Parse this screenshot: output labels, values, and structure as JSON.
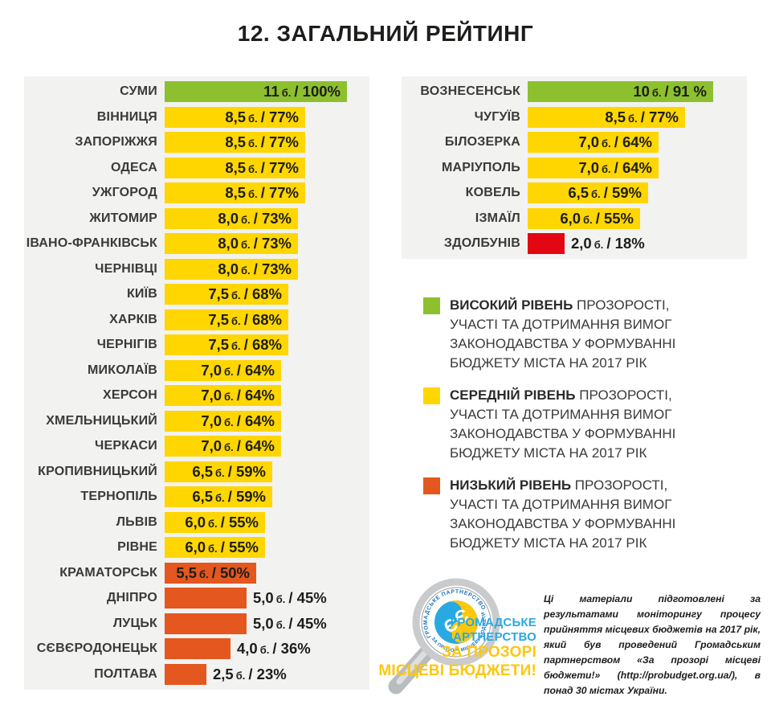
{
  "page": {
    "title": "12. ЗАГАЛЬНИЙ РЕЙТИНГ"
  },
  "colors": {
    "high": "#8dc02f",
    "medium": "#ffd600",
    "low": "#e4571e",
    "critical": "#e30613",
    "panel_bg": "#f2f2f1",
    "ink": "#1d1d1b",
    "brand_blue": "#29a9e1",
    "brand_gold": "#fdc70c",
    "badge_text_blue": "#1b75bc"
  },
  "chart_data": {
    "type": "bar",
    "orientation": "horizontal",
    "title": "12. ЗАГАЛЬНИЙ РЕЙТИНГ",
    "unit": "б.",
    "max_points": 11,
    "value_format": "{points} б. / {percent}%",
    "series": [
      {
        "name": "left-ranking",
        "rows": [
          {
            "city": "СУМИ",
            "points": 11,
            "percent": 100,
            "level": "high",
            "value_parts": [
              "11",
              "б.",
              "/ 100%"
            ]
          },
          {
            "city": "ВІННИЦЯ",
            "points": 8.5,
            "percent": 77,
            "level": "medium",
            "value_parts": [
              "8,5",
              "б.",
              "/ 77%"
            ]
          },
          {
            "city": "ЗАПОРІЖЖЯ",
            "points": 8.5,
            "percent": 77,
            "level": "medium",
            "value_parts": [
              "8,5",
              "б.",
              "/ 77%"
            ]
          },
          {
            "city": "ОДЕСА",
            "points": 8.5,
            "percent": 77,
            "level": "medium",
            "value_parts": [
              "8,5",
              "б.",
              "/ 77%"
            ]
          },
          {
            "city": "УЖГОРОД",
            "points": 8.5,
            "percent": 77,
            "level": "medium",
            "value_parts": [
              "8,5",
              "б.",
              "/ 77%"
            ]
          },
          {
            "city": "ЖИТОМИР",
            "points": 8.0,
            "percent": 73,
            "level": "medium",
            "value_parts": [
              "8,0",
              "б.",
              "/ 73%"
            ]
          },
          {
            "city": "ІВАНО-ФРАНКІВСЬК",
            "points": 8.0,
            "percent": 73,
            "level": "medium",
            "value_parts": [
              "8,0",
              "б.",
              "/ 73%"
            ]
          },
          {
            "city": "ЧЕРНІВЦІ",
            "points": 8.0,
            "percent": 73,
            "level": "medium",
            "value_parts": [
              "8,0",
              "б.",
              "/ 73%"
            ]
          },
          {
            "city": "КИЇВ",
            "points": 7.5,
            "percent": 68,
            "level": "medium",
            "value_parts": [
              "7,5",
              "б.",
              "/ 68%"
            ]
          },
          {
            "city": "ХАРКІВ",
            "points": 7.5,
            "percent": 68,
            "level": "medium",
            "value_parts": [
              "7,5",
              "б.",
              "/ 68%"
            ]
          },
          {
            "city": "ЧЕРНІГІВ",
            "points": 7.5,
            "percent": 68,
            "level": "medium",
            "value_parts": [
              "7,5",
              "б.",
              "/ 68%"
            ]
          },
          {
            "city": "МИКОЛАЇВ",
            "points": 7.0,
            "percent": 64,
            "level": "medium",
            "value_parts": [
              "7,0",
              "б.",
              "/ 64%"
            ]
          },
          {
            "city": "ХЕРСОН",
            "points": 7.0,
            "percent": 64,
            "level": "medium",
            "value_parts": [
              "7,0",
              "б.",
              "/ 64%"
            ]
          },
          {
            "city": "ХМЕЛЬНИЦЬКИЙ",
            "points": 7.0,
            "percent": 64,
            "level": "medium",
            "value_parts": [
              "7,0",
              "б.",
              "/ 64%"
            ]
          },
          {
            "city": "ЧЕРКАСИ",
            "points": 7.0,
            "percent": 64,
            "level": "medium",
            "value_parts": [
              "7,0",
              "б.",
              "/ 64%"
            ]
          },
          {
            "city": "КРОПИВНИЦЬКИЙ",
            "points": 6.5,
            "percent": 59,
            "level": "medium",
            "value_parts": [
              "6,5",
              "б.",
              "/ 59%"
            ]
          },
          {
            "city": "ТЕРНОПІЛЬ",
            "points": 6.5,
            "percent": 59,
            "level": "medium",
            "value_parts": [
              "6,5",
              "б.",
              "/ 59%"
            ]
          },
          {
            "city": "ЛЬВІВ",
            "points": 6.0,
            "percent": 55,
            "level": "medium",
            "value_parts": [
              "6,0",
              "б.",
              "/ 55%"
            ]
          },
          {
            "city": "РІВНЕ",
            "points": 6.0,
            "percent": 55,
            "level": "medium",
            "value_parts": [
              "6,0",
              "б.",
              "/ 55%"
            ]
          },
          {
            "city": "КРАМАТОРСЬК",
            "points": 5.5,
            "percent": 50,
            "level": "low",
            "value_parts": [
              "5,5",
              "б.",
              "/ 50%"
            ]
          },
          {
            "city": "ДНІПРО",
            "points": 5.0,
            "percent": 45,
            "level": "low",
            "value_parts": [
              "5,0",
              "б.",
              "/ 45%"
            ]
          },
          {
            "city": "ЛУЦЬК",
            "points": 5.0,
            "percent": 45,
            "level": "low",
            "value_parts": [
              "5,0",
              "б.",
              "/ 45%"
            ]
          },
          {
            "city": "СЄВЄРОДОНЕЦЬК",
            "points": 4.0,
            "percent": 36,
            "level": "low",
            "value_parts": [
              "4,0",
              "б.",
              "/ 36%"
            ]
          },
          {
            "city": "ПОЛТАВА",
            "points": 2.5,
            "percent": 23,
            "level": "low",
            "value_parts": [
              "2,5",
              "б.",
              "/ 23%"
            ]
          }
        ]
      },
      {
        "name": "right-ranking",
        "rows": [
          {
            "city": "ВОЗНЕСЕНСЬК",
            "points": 10,
            "percent": 91,
            "level": "high",
            "value_parts": [
              "10",
              "б.",
              "/ 91 %"
            ]
          },
          {
            "city": "ЧУГУЇВ",
            "points": 8.5,
            "percent": 77,
            "level": "medium",
            "value_parts": [
              "8,5",
              "б.",
              "/ 77%"
            ]
          },
          {
            "city": "БІЛОЗЕРКА",
            "points": 7.0,
            "percent": 64,
            "level": "medium",
            "value_parts": [
              "7,0",
              "б.",
              "/ 64%"
            ]
          },
          {
            "city": "МАРІУПОЛЬ",
            "points": 7.0,
            "percent": 64,
            "level": "medium",
            "value_parts": [
              "7,0",
              "б.",
              "/ 64%"
            ]
          },
          {
            "city": "КОВЕЛЬ",
            "points": 6.5,
            "percent": 59,
            "level": "medium",
            "value_parts": [
              "6,5",
              "б.",
              "/ 59%"
            ]
          },
          {
            "city": "ІЗМАЇЛ",
            "points": 6.0,
            "percent": 55,
            "level": "medium",
            "value_parts": [
              "6,0",
              "б.",
              "/ 55%"
            ]
          },
          {
            "city": "ЗДОЛБУНІВ",
            "points": 2.0,
            "percent": 18,
            "level": "critical",
            "value_parts": [
              "2,0",
              "б.",
              "/ 18%"
            ]
          }
        ]
      }
    ],
    "legend": [
      {
        "level": "high",
        "bold": "ВИСОКИЙ РІВЕНЬ",
        "lines": [
          "ПРОЗОРОСТІ,",
          "УЧАСТІ ТА ДОТРИМАННЯ ВИМОГ",
          "ЗАКОНОДАВСТВА У ФОРМУВАННІ",
          "БЮДЖЕТУ МІСТА НА 2017 РІК"
        ]
      },
      {
        "level": "medium",
        "bold": "СЕРЕДНІЙ РІВЕНЬ",
        "lines": [
          "ПРОЗОРОСТІ,",
          "УЧАСТІ ТА ДОТРИМАННЯ ВИМОГ",
          "ЗАКОНОДАВСТВА У ФОРМУВАННІ",
          "БЮДЖЕТУ МІСТА НА 2017 РІК"
        ]
      },
      {
        "level": "low",
        "bold": "НИЗЬКИЙ РІВЕНЬ",
        "lines": [
          "ПРОЗОРОСТІ,",
          "УЧАСТІ ТА ДОТРИМАННЯ ВИМОГ",
          "ЗАКОНОДАВСТВА У ФОРМУВАННІ",
          "БЮДЖЕТУ МІСТА НА 2017 РІК"
        ]
      }
    ]
  },
  "footer": {
    "brand": {
      "badge_top": "ГРОМАДСЬКЕ ПАРТНЕРСТВО",
      "badge_bottom": "ЗА ПРОЗОРІ МІСЦЕВІ БЮДЖЕТИ",
      "badge_glyph": "Є",
      "name_line1": "ГРОМАДСЬКЕ",
      "name_line2": "ПАРТНЕРСТВО",
      "slogan_line1": "ЗА ПРОЗОРІ",
      "slogan_line2": "МІСЦЕВІ БЮДЖЕТИ!"
    },
    "note": "Ці матеріали підготовлені за результатами моніторингу процесу прийняття місцевих бюджетів на 2017 рік, який був проведений Громадським партнерством «За прозорі місцеві бюджети!» (http://probudget.org.ua/), в понад 30 містах України."
  }
}
